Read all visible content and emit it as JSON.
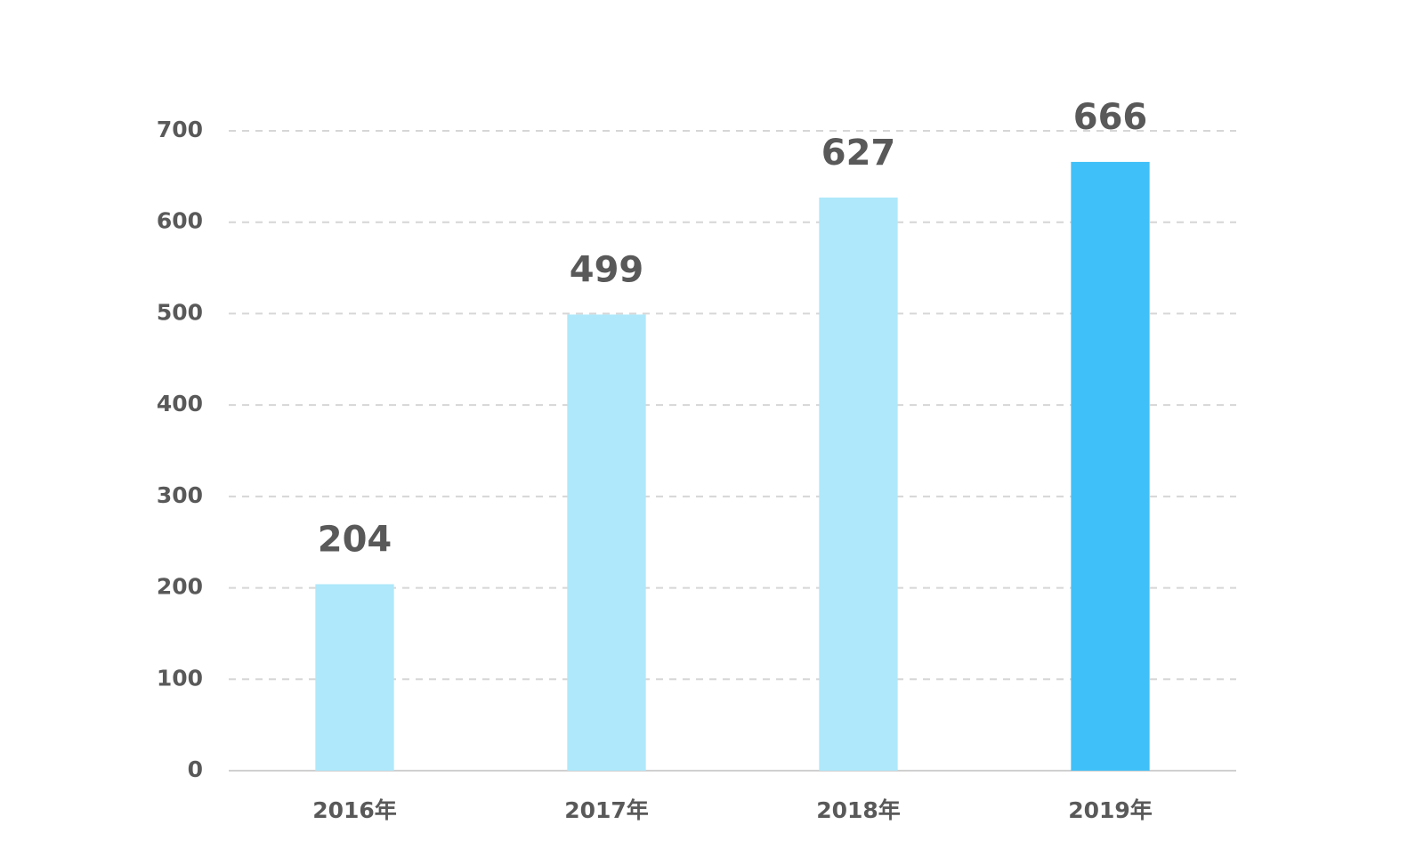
{
  "chart_data": {
    "type": "bar",
    "categories": [
      "2016年",
      "2017年",
      "2018年",
      "2019年"
    ],
    "values": [
      204,
      499,
      627,
      666
    ],
    "colors": [
      "#aee8fa",
      "#aee8fa",
      "#aee8fa",
      "#40c0f8"
    ],
    "ylim": [
      0,
      700
    ],
    "yticks": [
      0,
      100,
      200,
      300,
      400,
      500,
      600,
      700
    ],
    "grid": true
  }
}
